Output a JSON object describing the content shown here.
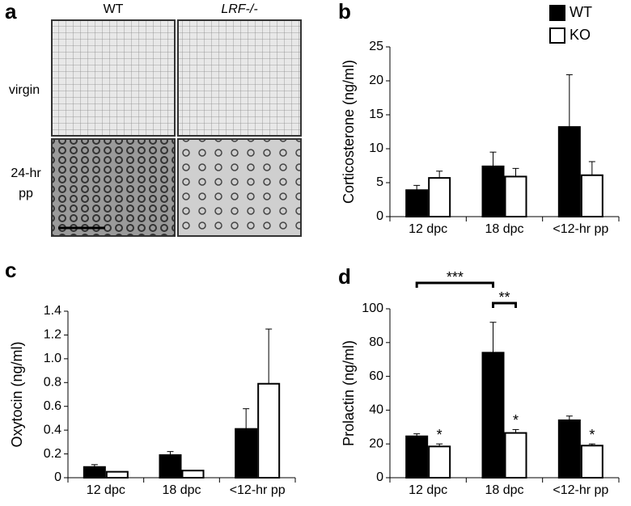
{
  "image_panel": {
    "panel_label": "a",
    "columns": [
      "WT",
      "LRF-/-"
    ],
    "rows": [
      [
        "virgin"
      ],
      [
        "24-hr",
        "pp"
      ]
    ]
  },
  "chart_data": [
    {
      "type": "bar",
      "panel_label": "b",
      "ylabel": "Corticosterone (ng/ml)",
      "categories": [
        "12 dpc",
        "18 dpc",
        "<12-hr pp"
      ],
      "series": [
        {
          "name": "WT",
          "color": "#000000",
          "values": [
            3.9,
            7.4,
            13.2
          ],
          "errors": [
            0.7,
            2.1,
            7.7
          ]
        },
        {
          "name": "KO",
          "color": "#ffffff",
          "values": [
            5.7,
            5.9,
            6.1
          ],
          "errors": [
            1.0,
            1.2,
            2.0
          ]
        }
      ],
      "ylim": [
        0,
        25
      ],
      "yticks": [
        0,
        5,
        10,
        15,
        20,
        25
      ],
      "legend": "upper right"
    },
    {
      "type": "bar",
      "panel_label": "c",
      "ylabel": "Oxytocin (ng/ml)",
      "categories": [
        "12 dpc",
        "18 dpc",
        "<12-hr pp"
      ],
      "series": [
        {
          "name": "WT",
          "color": "#000000",
          "values": [
            0.09,
            0.19,
            0.41
          ],
          "errors": [
            0.02,
            0.03,
            0.17
          ]
        },
        {
          "name": "KO",
          "color": "#ffffff",
          "values": [
            0.05,
            0.06,
            0.79
          ],
          "errors": [
            0,
            0,
            0.46
          ]
        }
      ],
      "ylim": [
        0,
        1.4
      ],
      "yticks": [
        0,
        0.2,
        0.4,
        0.6,
        0.8,
        {
          "value": 1,
          "label": "1.0"
        },
        1.2,
        1.4
      ]
    },
    {
      "type": "bar",
      "panel_label": "d",
      "ylabel": "Prolactin (ng/ml)",
      "categories": [
        "12 dpc",
        "18 dpc",
        "<12-hr pp"
      ],
      "series": [
        {
          "name": "WT",
          "color": "#000000",
          "values": [
            24.5,
            74,
            34
          ],
          "errors": [
            1.5,
            18,
            2.5
          ]
        },
        {
          "name": "KO",
          "color": "#ffffff",
          "values": [
            18.5,
            26.5,
            19
          ],
          "errors": [
            1.5,
            2,
            1
          ]
        }
      ],
      "ylim": [
        0,
        100
      ],
      "yticks": [
        0,
        20,
        40,
        60,
        80,
        100
      ],
      "annotations": [
        {
          "text": "*",
          "category": 0,
          "series": 1
        },
        {
          "text": "*",
          "category": 1,
          "series": 1
        },
        {
          "text": "*",
          "category": 2,
          "series": 1
        }
      ],
      "brackets": [
        {
          "text": "***",
          "start": {
            "category": 0,
            "series": 0
          },
          "end": {
            "category": 1,
            "series": 0
          }
        },
        {
          "text": "**",
          "start": {
            "category": 1,
            "series": 0
          },
          "end": {
            "category": 1,
            "series": 1
          }
        }
      ]
    }
  ]
}
